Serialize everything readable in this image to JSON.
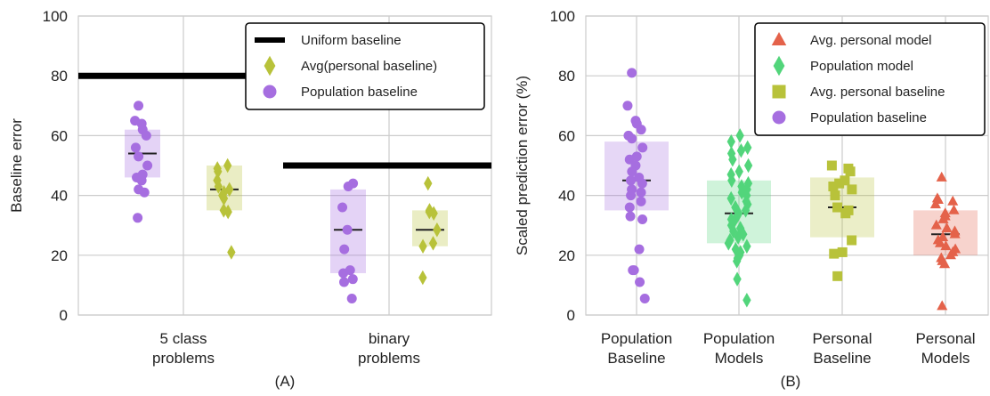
{
  "chart_data": [
    {
      "type": "scatter",
      "panel_label": "(A)",
      "ylabel": "Baseline error",
      "ylim": [
        0,
        100
      ],
      "yticks": [
        0,
        20,
        40,
        60,
        80,
        100
      ],
      "grid": true,
      "legend_position": "top-right",
      "categories": [
        "5 class\nproblems",
        "binary\nproblems"
      ],
      "legend": [
        {
          "label": "Uniform baseline",
          "marker": "line",
          "color": "#000000"
        },
        {
          "label": "Avg(personal baseline)",
          "marker": "diamond",
          "color": "#b8c23a"
        },
        {
          "label": "Population baseline",
          "marker": "circle",
          "color": "#a66ee0"
        }
      ],
      "uniform_baseline": [
        80,
        50
      ],
      "series": [
        {
          "name": "Population baseline",
          "color": "#a66ee0",
          "marker": "circle",
          "box": [
            {
              "cat": 0,
              "q1": 46,
              "q3": 62,
              "median": 54
            },
            {
              "cat": 1,
              "q1": 14,
              "q3": 42,
              "median": 28.5
            }
          ],
          "points": [
            {
              "cat": 0,
              "y": [
                70,
                65,
                64,
                62,
                60,
                56,
                53,
                50,
                47,
                46,
                45,
                42,
                41,
                32.5
              ]
            },
            {
              "cat": 1,
              "y": [
                44,
                43,
                36,
                28.5,
                22,
                15,
                14,
                12,
                11,
                5.5
              ]
            }
          ]
        },
        {
          "name": "Avg(personal baseline)",
          "color": "#b8c23a",
          "marker": "diamond",
          "box": [
            {
              "cat": 0,
              "q1": 35,
              "q3": 50,
              "median": 42
            },
            {
              "cat": 1,
              "q1": 23,
              "q3": 35,
              "median": 28.5
            }
          ],
          "points": [
            {
              "cat": 0,
              "y": [
                50,
                49,
                48,
                45,
                43,
                42,
                41,
                40,
                39,
                35,
                34.5,
                21
              ]
            },
            {
              "cat": 1,
              "y": [
                44,
                35,
                34.5,
                34,
                28.5,
                24,
                23,
                12.5
              ]
            }
          ]
        }
      ]
    },
    {
      "type": "scatter",
      "panel_label": "(B)",
      "ylabel": "Scaled prediction error (%)",
      "ylim": [
        0,
        100
      ],
      "yticks": [
        0,
        20,
        40,
        60,
        80,
        100
      ],
      "grid": true,
      "legend_position": "top-right",
      "categories": [
        "Population\nBaseline",
        "Population\nModels",
        "Personal\nBaseline",
        "Personal\nModels"
      ],
      "legend": [
        {
          "label": "Avg. personal model",
          "marker": "triangle",
          "color": "#e4624a"
        },
        {
          "label": "Population model",
          "marker": "diamond",
          "color": "#52d57b"
        },
        {
          "label": "Avg. personal baseline",
          "marker": "square",
          "color": "#b8c23a"
        },
        {
          "label": "Population baseline",
          "marker": "circle",
          "color": "#a66ee0"
        }
      ],
      "series": [
        {
          "name": "Population baseline",
          "cat": 0,
          "color": "#a66ee0",
          "marker": "circle",
          "box": {
            "q1": 35,
            "q3": 58,
            "median": 45
          },
          "y": [
            81,
            70,
            65,
            64,
            62,
            60,
            59,
            56,
            53,
            52,
            50,
            48,
            46,
            45,
            44,
            42,
            41,
            40,
            38,
            36,
            33,
            32,
            22,
            15,
            15,
            11,
            5.5
          ]
        },
        {
          "name": "Population model",
          "cat": 1,
          "color": "#52d57b",
          "marker": "diamond",
          "box": {
            "q1": 24,
            "q3": 45,
            "median": 34
          },
          "y": [
            60,
            58,
            56,
            55,
            54,
            52,
            50,
            48,
            47,
            45,
            44,
            43,
            42,
            41,
            40,
            39,
            38,
            37,
            36,
            35,
            34,
            33,
            32,
            31,
            30,
            29,
            28,
            27,
            26,
            25,
            24,
            23,
            22,
            21,
            20,
            19,
            18,
            12,
            5
          ]
        },
        {
          "name": "Avg. personal baseline",
          "cat": 2,
          "color": "#b8c23a",
          "marker": "square",
          "box": {
            "q1": 26,
            "q3": 46,
            "median": 36
          },
          "y": [
            50,
            49,
            48,
            45,
            44,
            43,
            42,
            40,
            36,
            35,
            34,
            25,
            21,
            20.5,
            13
          ]
        },
        {
          "name": "Avg. personal model",
          "cat": 3,
          "color": "#e4624a",
          "marker": "triangle",
          "box": {
            "q1": 20,
            "q3": 35,
            "median": 27
          },
          "y": [
            46,
            39,
            38.5,
            38,
            37,
            35,
            34,
            33,
            32,
            30,
            29,
            28,
            27,
            26,
            25,
            24,
            23,
            22,
            21,
            20,
            19,
            18,
            17,
            3
          ]
        }
      ]
    }
  ]
}
